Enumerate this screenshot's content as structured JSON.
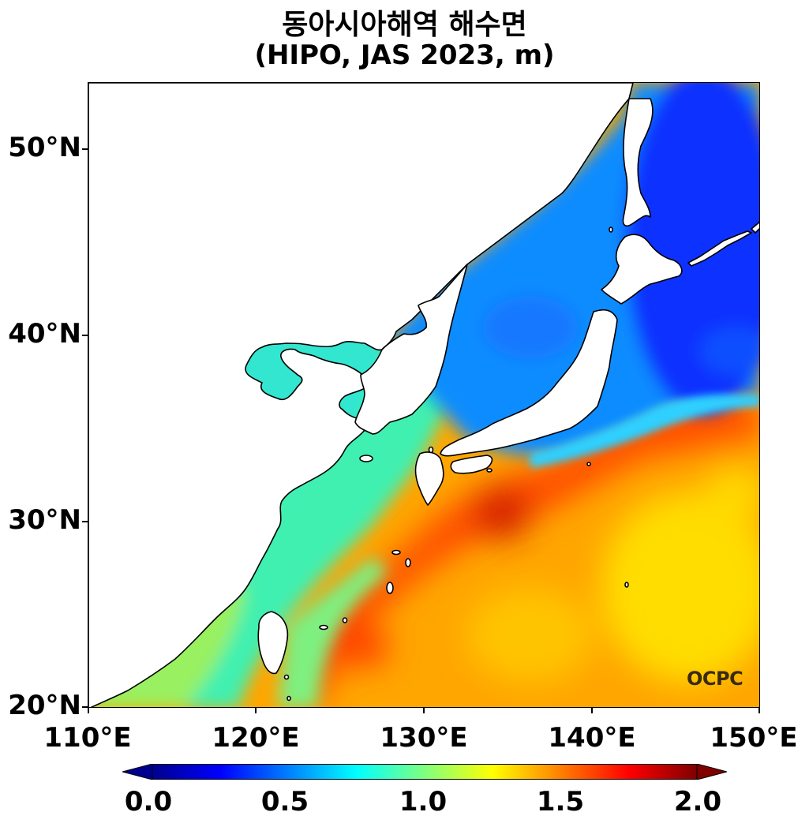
{
  "title": {
    "line1": "동아시아해역 해수면",
    "line2": "(HIPO, JAS 2023, m)"
  },
  "axes": {
    "lat_ticks": [
      "50°N",
      "40°N",
      "30°N",
      "20°N"
    ],
    "lon_ticks": [
      "110°E",
      "120°E",
      "130°E",
      "140°E",
      "150°E"
    ],
    "lon_range": [
      110,
      150
    ],
    "lat_range": [
      20,
      53.5
    ]
  },
  "colorbar": {
    "ticks": [
      "0.0",
      "0.5",
      "1.0",
      "1.5",
      "2.0"
    ],
    "range": [
      0.0,
      2.0
    ],
    "colormap": "jet",
    "extend": "both"
  },
  "logo": {
    "text": "OCPC"
  },
  "colors": {
    "ocean_low": "#0a3dff",
    "ocean_mid": "#33e6cc",
    "ocean_high": "#ffae00",
    "peak": "#e62800",
    "land": "#ffffff",
    "coast": "#000000"
  }
}
